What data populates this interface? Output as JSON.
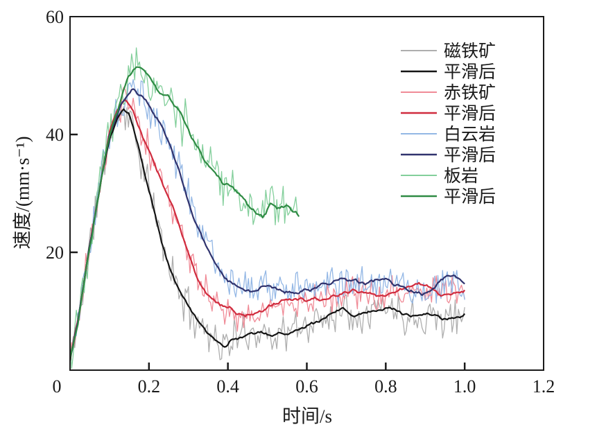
{
  "figure": {
    "background": "#ffffff",
    "border_color": "#1a1a1a"
  },
  "chart_data": {
    "type": "line",
    "title": "",
    "xlabel": "时间/s",
    "ylabel": "速度/(mm·s⁻¹)",
    "xlim": [
      0,
      1.2
    ],
    "ylim": [
      0,
      60
    ],
    "grid": false,
    "ticks_direction": "in",
    "legend_position": "upper-right-inside",
    "xticks": [
      {
        "v": 0.0,
        "label": "0"
      },
      {
        "v": 0.2,
        "label": "0.2"
      },
      {
        "v": 0.4,
        "label": "0.4"
      },
      {
        "v": 0.6,
        "label": "0.6"
      },
      {
        "v": 0.8,
        "label": "0.8"
      },
      {
        "v": 1.0,
        "label": "1.0"
      },
      {
        "v": 1.2,
        "label": "1.2"
      }
    ],
    "yticks": [
      {
        "v": 20,
        "label": "20"
      },
      {
        "v": 40,
        "label": "40"
      },
      {
        "v": 60,
        "label": "60"
      }
    ],
    "groups": [
      {
        "key": "magnetite",
        "raw_label": "磁铁矿",
        "smooth_label": "平滑后",
        "raw_color": "#aeaeae",
        "smooth_color": "#141414",
        "noise_amplitude": 2.4,
        "smooth_wiggle": 0.6,
        "t_end": 1.0,
        "points": [
          [
            0,
            1.5
          ],
          [
            0.02,
            8
          ],
          [
            0.04,
            17
          ],
          [
            0.06,
            25
          ],
          [
            0.08,
            33
          ],
          [
            0.1,
            39.5
          ],
          [
            0.12,
            43
          ],
          [
            0.135,
            44
          ],
          [
            0.15,
            43.2
          ],
          [
            0.17,
            38.5
          ],
          [
            0.19,
            33
          ],
          [
            0.21,
            28
          ],
          [
            0.23,
            22.5
          ],
          [
            0.25,
            18
          ],
          [
            0.27,
            14.5
          ],
          [
            0.29,
            11.5
          ],
          [
            0.31,
            9.5
          ],
          [
            0.33,
            8
          ],
          [
            0.35,
            6.8
          ],
          [
            0.37,
            5.2
          ],
          [
            0.39,
            3.8
          ],
          [
            0.41,
            5.2
          ],
          [
            0.43,
            5.6
          ],
          [
            0.45,
            6.4
          ],
          [
            0.48,
            6.6
          ],
          [
            0.51,
            6.1
          ],
          [
            0.54,
            6.3
          ],
          [
            0.57,
            6.8
          ],
          [
            0.6,
            7.6
          ],
          [
            0.63,
            8.2
          ],
          [
            0.66,
            9.6
          ],
          [
            0.69,
            10.8
          ],
          [
            0.72,
            9.6
          ],
          [
            0.75,
            10.2
          ],
          [
            0.78,
            10.6
          ],
          [
            0.81,
            10.9
          ],
          [
            0.84,
            9.6
          ],
          [
            0.87,
            9.2
          ],
          [
            0.9,
            9.6
          ],
          [
            0.93,
            9.2
          ],
          [
            0.96,
            8.6
          ],
          [
            1.0,
            9.2
          ]
        ]
      },
      {
        "key": "hematite",
        "raw_label": "赤铁矿",
        "smooth_label": "平滑后",
        "raw_color": "#f08a96",
        "smooth_color": "#d02c3e",
        "noise_amplitude": 1.9,
        "smooth_wiggle": 0.7,
        "t_end": 1.0,
        "points": [
          [
            0,
            1.5
          ],
          [
            0.02,
            8
          ],
          [
            0.04,
            17
          ],
          [
            0.06,
            25
          ],
          [
            0.08,
            33
          ],
          [
            0.1,
            40
          ],
          [
            0.12,
            44
          ],
          [
            0.14,
            46
          ],
          [
            0.16,
            44
          ],
          [
            0.18,
            40.5
          ],
          [
            0.2,
            37.5
          ],
          [
            0.22,
            34.5
          ],
          [
            0.24,
            31
          ],
          [
            0.26,
            27.5
          ],
          [
            0.28,
            23.5
          ],
          [
            0.3,
            19.5
          ],
          [
            0.32,
            16
          ],
          [
            0.34,
            13.8
          ],
          [
            0.36,
            12
          ],
          [
            0.38,
            10.8
          ],
          [
            0.4,
            10
          ],
          [
            0.43,
            9.4
          ],
          [
            0.46,
            9.8
          ],
          [
            0.49,
            10.4
          ],
          [
            0.52,
            10.8
          ],
          [
            0.55,
            11.2
          ],
          [
            0.58,
            11.6
          ],
          [
            0.61,
            11.9
          ],
          [
            0.64,
            12.2
          ],
          [
            0.67,
            12.6
          ],
          [
            0.7,
            13.1
          ],
          [
            0.73,
            13.3
          ],
          [
            0.76,
            13.1
          ],
          [
            0.79,
            12.8
          ],
          [
            0.82,
            13.1
          ],
          [
            0.85,
            13.6
          ],
          [
            0.88,
            14.2
          ],
          [
            0.91,
            13.9
          ],
          [
            0.94,
            12.6
          ],
          [
            0.97,
            12.9
          ],
          [
            1.0,
            13.3
          ]
        ]
      },
      {
        "key": "dolomite",
        "raw_label": "白云岩",
        "smooth_label": "平滑后",
        "raw_color": "#93b7e5",
        "smooth_color": "#30336e",
        "noise_amplitude": 2.1,
        "smooth_wiggle": 0.7,
        "t_end": 1.0,
        "points": [
          [
            0,
            1.5
          ],
          [
            0.02,
            8
          ],
          [
            0.04,
            17
          ],
          [
            0.06,
            25
          ],
          [
            0.08,
            33
          ],
          [
            0.1,
            40
          ],
          [
            0.13,
            45.5
          ],
          [
            0.16,
            48
          ],
          [
            0.18,
            46.5
          ],
          [
            0.2,
            44.5
          ],
          [
            0.22,
            42.5
          ],
          [
            0.24,
            40
          ],
          [
            0.26,
            37
          ],
          [
            0.28,
            33.5
          ],
          [
            0.3,
            29.5
          ],
          [
            0.32,
            26
          ],
          [
            0.34,
            22.5
          ],
          [
            0.36,
            19.2
          ],
          [
            0.38,
            16.8
          ],
          [
            0.4,
            15
          ],
          [
            0.43,
            13.9
          ],
          [
            0.46,
            13.4
          ],
          [
            0.49,
            13.7
          ],
          [
            0.52,
            13.3
          ],
          [
            0.55,
            13.6
          ],
          [
            0.58,
            13.9
          ],
          [
            0.61,
            14.1
          ],
          [
            0.64,
            14.4
          ],
          [
            0.67,
            14.7
          ],
          [
            0.7,
            15
          ],
          [
            0.73,
            14.8
          ],
          [
            0.76,
            15
          ],
          [
            0.79,
            15.2
          ],
          [
            0.82,
            14.6
          ],
          [
            0.85,
            14.2
          ],
          [
            0.88,
            13.1
          ],
          [
            0.91,
            12.6
          ],
          [
            0.94,
            14.4
          ],
          [
            0.97,
            15.6
          ],
          [
            1.0,
            14.6
          ]
        ]
      },
      {
        "key": "slate",
        "raw_label": "板岩",
        "smooth_label": "平滑后",
        "raw_color": "#83cf9b",
        "smooth_color": "#2f8b44",
        "noise_amplitude": 2.9,
        "smooth_wiggle": 0.9,
        "t_end": 0.58,
        "points": [
          [
            0,
            1.5
          ],
          [
            0.02,
            8
          ],
          [
            0.04,
            17
          ],
          [
            0.06,
            25
          ],
          [
            0.08,
            33
          ],
          [
            0.1,
            40
          ],
          [
            0.13,
            46.5
          ],
          [
            0.15,
            50
          ],
          [
            0.17,
            51
          ],
          [
            0.19,
            50.5
          ],
          [
            0.21,
            49.5
          ],
          [
            0.23,
            47.5
          ],
          [
            0.25,
            46
          ],
          [
            0.27,
            43.5
          ],
          [
            0.29,
            41.5
          ],
          [
            0.31,
            39
          ],
          [
            0.33,
            37.5
          ],
          [
            0.35,
            35.5
          ],
          [
            0.37,
            34
          ],
          [
            0.39,
            32
          ],
          [
            0.41,
            31
          ],
          [
            0.43,
            29.8
          ],
          [
            0.45,
            28.2
          ],
          [
            0.47,
            27
          ],
          [
            0.49,
            26.2
          ],
          [
            0.51,
            28
          ],
          [
            0.53,
            27.2
          ],
          [
            0.55,
            28
          ],
          [
            0.57,
            27
          ],
          [
            0.58,
            26.2
          ]
        ]
      }
    ]
  }
}
